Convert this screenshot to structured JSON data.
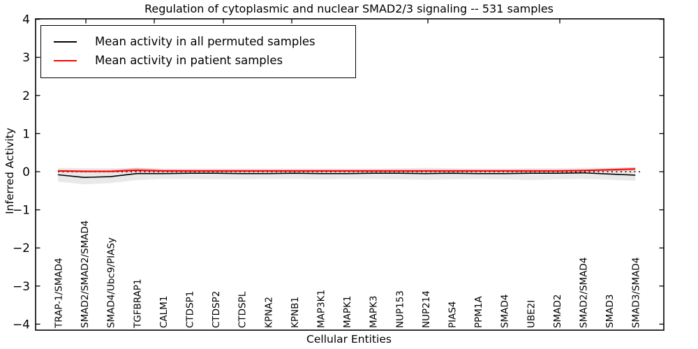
{
  "title": "Regulation of cytoplasmic and nuclear SMAD2/3 signaling -- 531 samples",
  "axes": {
    "ylabel": "Inferred Activity",
    "xlabel": "Cellular Entities"
  },
  "legend": [
    {
      "label": "Mean activity in all permuted samples",
      "color": "#000000"
    },
    {
      "label": "Mean activity in patient samples",
      "color": "#ff0000"
    }
  ],
  "chart_data": {
    "type": "line",
    "title": "Regulation of cytoplasmic and nuclear SMAD2/3 signaling -- 531 samples",
    "xlabel": "Cellular Entities",
    "ylabel": "Inferred Activity",
    "ylim": [
      -4,
      4
    ],
    "yticks": [
      -4,
      -3,
      -2,
      -1,
      0,
      1,
      2,
      3,
      4
    ],
    "grid": false,
    "legend_position": "upper left",
    "zero_line": {
      "y": 0,
      "style": "dotted",
      "color": "#000000"
    },
    "categories": [
      "TRAP-1/SMAD4",
      "SMAD2/SMAD2/SMAD4",
      "SMAD4/Ubc9/PIASy",
      "TGFBRAP1",
      "CALM1",
      "CTDSP1",
      "CTDSP2",
      "CTDSPL",
      "KPNA2",
      "KPNB1",
      "MAP3K1",
      "MAPK1",
      "MAPK3",
      "NUP153",
      "NUP214",
      "PIAS4",
      "PPM1A",
      "SMAD4",
      "UBE2I",
      "SMAD2",
      "SMAD2/SMAD4",
      "SMAD3",
      "SMAD3/SMAD4"
    ],
    "series": [
      {
        "name": "Mean activity in all permuted samples",
        "color": "#000000",
        "values": [
          -0.08,
          -0.15,
          -0.13,
          -0.05,
          -0.05,
          -0.04,
          -0.04,
          -0.05,
          -0.05,
          -0.04,
          -0.05,
          -0.05,
          -0.04,
          -0.04,
          -0.05,
          -0.04,
          -0.05,
          -0.05,
          -0.04,
          -0.04,
          -0.03,
          -0.06,
          -0.09
        ]
      },
      {
        "name": "Mean activity in patient samples",
        "color": "#ff0000",
        "values": [
          0.02,
          0.01,
          0.01,
          0.04,
          0.02,
          0.02,
          0.02,
          0.02,
          0.02,
          0.02,
          0.02,
          0.02,
          0.02,
          0.02,
          0.02,
          0.02,
          0.02,
          0.02,
          0.02,
          0.02,
          0.03,
          0.05,
          0.07
        ]
      }
    ],
    "bands": [
      {
        "name": "permuted-samples-range",
        "color": "#e9e9e9",
        "upper": [
          0.1,
          0.09,
          0.09,
          0.1,
          0.08,
          0.08,
          0.08,
          0.08,
          0.08,
          0.08,
          0.08,
          0.08,
          0.08,
          0.09,
          0.1,
          0.09,
          0.08,
          0.08,
          0.09,
          0.09,
          0.1,
          0.1,
          0.13
        ],
        "lower": [
          -0.26,
          -0.33,
          -0.3,
          -0.22,
          -0.19,
          -0.19,
          -0.2,
          -0.2,
          -0.19,
          -0.19,
          -0.2,
          -0.19,
          -0.19,
          -0.2,
          -0.21,
          -0.2,
          -0.19,
          -0.2,
          -0.22,
          -0.2,
          -0.19,
          -0.21,
          -0.24
        ]
      },
      {
        "name": "patient-samples-range",
        "color": "#ff000033",
        "upper": [
          0.05,
          0.04,
          0.04,
          0.1,
          0.06,
          0.05,
          0.05,
          0.05,
          0.05,
          0.05,
          0.05,
          0.05,
          0.05,
          0.05,
          0.05,
          0.05,
          0.05,
          0.05,
          0.05,
          0.05,
          0.06,
          0.08,
          0.11
        ],
        "lower": [
          -0.01,
          -0.02,
          -0.02,
          -0.01,
          -0.01,
          -0.01,
          -0.01,
          -0.01,
          -0.01,
          -0.01,
          -0.01,
          -0.01,
          -0.01,
          -0.01,
          -0.01,
          -0.01,
          -0.01,
          -0.01,
          -0.01,
          -0.01,
          0.0,
          0.01,
          0.03
        ]
      }
    ]
  }
}
